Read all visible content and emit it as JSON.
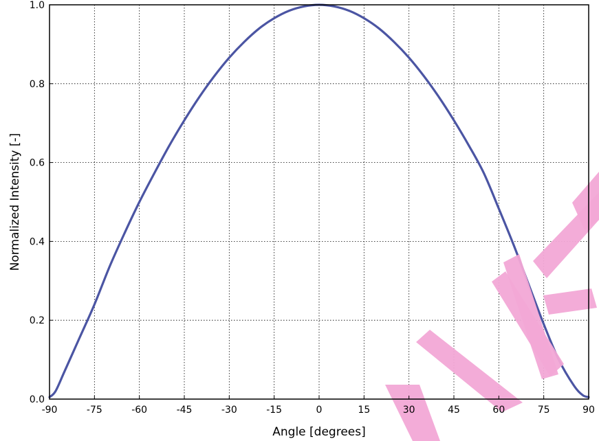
{
  "chart_data": {
    "type": "line",
    "title": "",
    "xlabel": "Angle [degrees]",
    "ylabel": "Normalized Intensity [-]",
    "xlim": [
      -90,
      90
    ],
    "ylim": [
      0,
      1.0
    ],
    "grid": true,
    "grid_style": "dotted",
    "x_ticks": [
      -90,
      -75,
      -60,
      -45,
      -30,
      -15,
      0,
      15,
      30,
      45,
      60,
      75,
      90
    ],
    "y_ticks": [
      0.0,
      0.2,
      0.4,
      0.6,
      0.8,
      1.0
    ],
    "x_tick_labels": [
      "-90",
      "-75",
      "-60",
      "-45",
      "-30",
      "-15",
      "0",
      "15",
      "30",
      "45",
      "60",
      "75",
      "90"
    ],
    "y_tick_labels": [
      "0.0",
      "0.2",
      "0.4",
      "0.6",
      "0.8",
      "1.0"
    ],
    "series": [
      {
        "color": "#4b55a3",
        "x": [
          -90,
          -88,
          -85,
          -80,
          -75,
          -70,
          -65,
          -60,
          -55,
          -50,
          -45,
          -40,
          -35,
          -30,
          -25,
          -20,
          -15,
          -10,
          -5,
          0,
          5,
          10,
          15,
          20,
          25,
          30,
          35,
          40,
          45,
          50,
          55,
          60,
          65,
          70,
          75,
          80,
          85,
          88,
          90
        ],
        "y": [
          0.005,
          0.02,
          0.07,
          0.155,
          0.24,
          0.335,
          0.42,
          0.5,
          0.573,
          0.643,
          0.707,
          0.766,
          0.819,
          0.866,
          0.906,
          0.94,
          0.966,
          0.985,
          0.996,
          1.0,
          0.996,
          0.985,
          0.966,
          0.94,
          0.906,
          0.866,
          0.819,
          0.766,
          0.707,
          0.643,
          0.573,
          0.483,
          0.39,
          0.29,
          0.19,
          0.1,
          0.035,
          0.01,
          0.005
        ]
      }
    ]
  },
  "watermark": {
    "color": "#f2a8d6"
  }
}
